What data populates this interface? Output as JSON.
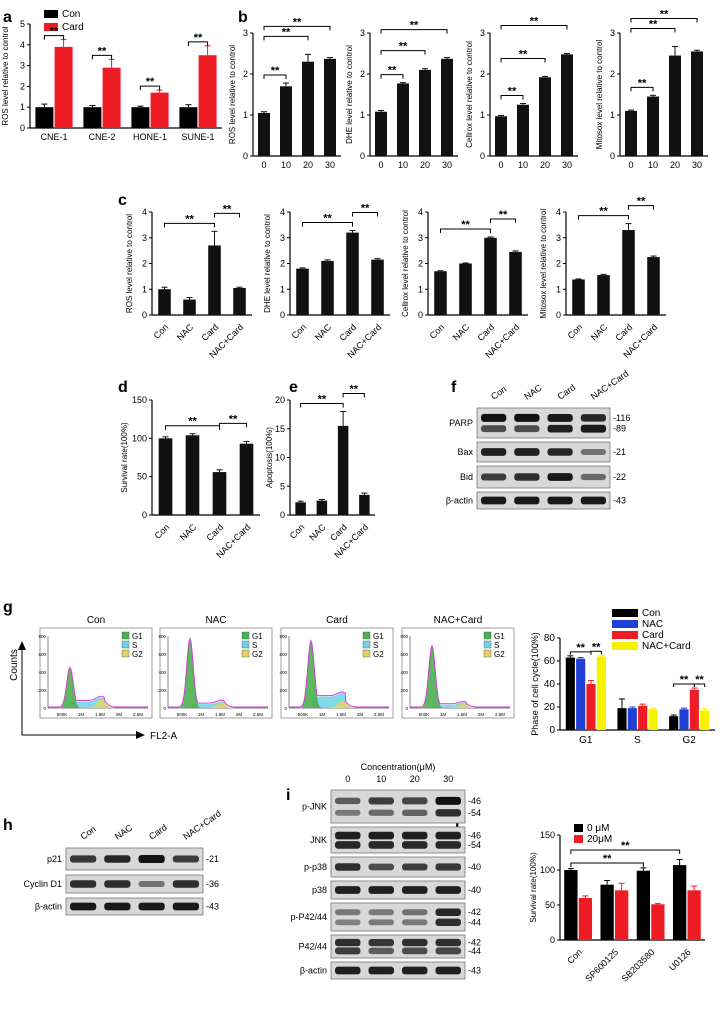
{
  "panel_letters": [
    "a",
    "b",
    "c",
    "d",
    "e",
    "f",
    "g",
    "h",
    "i",
    "j"
  ],
  "significance_mark": "**",
  "colors": {
    "con": "#000000",
    "card": "#ee1c24",
    "nac": "#1f3fd6",
    "nac_card": "#f6f200",
    "bar": "#111111",
    "g1_fill": "#4caf50",
    "s_fill": "#6fd3e8",
    "g2_fill": "#ddd36a"
  },
  "chart_data": [
    {
      "id": "a",
      "type": "bar",
      "ylabel": "ROS level relative to control",
      "categories": [
        "CNE-1",
        "CNE-2",
        "HONE-1",
        "SUNE-1"
      ],
      "series": [
        {
          "name": "Con",
          "color": "#000000",
          "values": [
            1,
            1,
            1,
            1
          ],
          "err": [
            0.15,
            0.08,
            0.05,
            0.12
          ]
        },
        {
          "name": "Card",
          "color": "#ee1c24",
          "values": [
            3.9,
            2.9,
            1.7,
            3.5
          ],
          "err": [
            0.35,
            0.4,
            0.12,
            0.45
          ]
        }
      ],
      "ylim": [
        0,
        5
      ],
      "yticks": [
        0,
        1,
        2,
        3,
        4,
        5
      ],
      "legend": "top-left",
      "sig": [
        [
          0,
          "**"
        ],
        [
          1,
          "**"
        ],
        [
          2,
          "**"
        ],
        [
          3,
          "**"
        ]
      ]
    },
    {
      "id": "b1",
      "type": "bar",
      "ylabel": "ROS level relative to control",
      "categories": [
        "0",
        "10",
        "20",
        "30"
      ],
      "values": [
        1.05,
        1.7,
        2.3,
        2.37
      ],
      "err": [
        0.03,
        0.08,
        0.18,
        0.03
      ],
      "ylim": [
        0,
        3
      ],
      "yticks": [
        0,
        1,
        2,
        3
      ],
      "brackets": [
        [
          0,
          1,
          "**"
        ],
        [
          0,
          2,
          "**"
        ],
        [
          0,
          3,
          "**"
        ]
      ]
    },
    {
      "id": "b2",
      "type": "bar",
      "ylabel": "DHE level relative to control",
      "categories": [
        "0",
        "10",
        "20",
        "30"
      ],
      "values": [
        1.08,
        1.77,
        2.1,
        2.37
      ],
      "err": [
        0.03,
        0.02,
        0.03,
        0.03
      ],
      "ylim": [
        0,
        3
      ],
      "yticks": [
        0,
        1,
        2,
        3
      ],
      "brackets": [
        [
          0,
          1,
          "**"
        ],
        [
          0,
          2,
          "**"
        ],
        [
          0,
          3,
          "**"
        ]
      ]
    },
    {
      "id": "b3",
      "type": "bar",
      "ylabel": "Cellrox level relative to control",
      "categories": [
        "0",
        "10",
        "20",
        "30"
      ],
      "values": [
        0.97,
        1.25,
        1.92,
        2.48
      ],
      "err": [
        0.02,
        0.03,
        0.02,
        0.02
      ],
      "ylim": [
        0,
        3
      ],
      "yticks": [
        0,
        1,
        2,
        3
      ],
      "brackets": [
        [
          0,
          1,
          "**"
        ],
        [
          0,
          2,
          "**"
        ],
        [
          0,
          3,
          "**"
        ]
      ]
    },
    {
      "id": "b4",
      "type": "bar",
      "ylabel": "Mitosox level relative to control",
      "categories": [
        "0",
        "10",
        "20",
        "30"
      ],
      "values": [
        1.1,
        1.45,
        2.45,
        2.55
      ],
      "err": [
        0.02,
        0.03,
        0.22,
        0.03
      ],
      "ylim": [
        0,
        3
      ],
      "yticks": [
        0,
        1,
        2,
        3
      ],
      "brackets": [
        [
          0,
          1,
          "**"
        ],
        [
          0,
          2,
          "**"
        ],
        [
          0,
          3,
          "**"
        ]
      ]
    },
    {
      "id": "c1",
      "type": "bar",
      "ylabel": "ROS level relative to control",
      "categories": [
        "Con",
        "NAC",
        "Card",
        "NAC+Card"
      ],
      "values": [
        1.0,
        0.6,
        2.7,
        1.05
      ],
      "err": [
        0.08,
        0.08,
        0.55,
        0.03
      ],
      "ylim": [
        0,
        4
      ],
      "yticks": [
        0,
        1,
        2,
        3,
        4
      ],
      "brackets": [
        [
          0,
          2,
          "**"
        ],
        [
          2,
          3,
          "**"
        ]
      ]
    },
    {
      "id": "c2",
      "type": "bar",
      "ylabel": "DHE level relative to control",
      "categories": [
        "Con",
        "NAC",
        "Card",
        "NAC+Card"
      ],
      "values": [
        1.8,
        2.1,
        3.2,
        2.15
      ],
      "err": [
        0.03,
        0.04,
        0.08,
        0.04
      ],
      "ylim": [
        0,
        4
      ],
      "yticks": [
        0,
        1,
        2,
        3,
        4
      ],
      "brackets": [
        [
          0,
          2,
          "**"
        ],
        [
          2,
          3,
          "**"
        ]
      ]
    },
    {
      "id": "c3",
      "type": "bar",
      "ylabel": "Cellrox level relative to control",
      "categories": [
        "Con",
        "NAC",
        "Card",
        "NAC+Card"
      ],
      "values": [
        1.7,
        2.0,
        3.0,
        2.45
      ],
      "err": [
        0.02,
        0.02,
        0.03,
        0.04
      ],
      "ylim": [
        0,
        4
      ],
      "yticks": [
        0,
        1,
        2,
        3,
        4
      ],
      "brackets": [
        [
          0,
          2,
          "**"
        ],
        [
          2,
          3,
          "**"
        ]
      ]
    },
    {
      "id": "c4",
      "type": "bar",
      "ylabel": "Mitosox level relative to control",
      "categories": [
        "Con",
        "NAC",
        "Card",
        "NAC+Card"
      ],
      "values": [
        1.38,
        1.55,
        3.3,
        2.25
      ],
      "err": [
        0.02,
        0.03,
        0.25,
        0.04
      ],
      "ylim": [
        0,
        4
      ],
      "yticks": [
        0,
        1,
        2,
        3,
        4
      ],
      "brackets": [
        [
          0,
          2,
          "**"
        ],
        [
          2,
          3,
          "**"
        ]
      ]
    },
    {
      "id": "d",
      "type": "bar",
      "ylabel": "Survival rate(100%)",
      "categories": [
        "Con",
        "NAC",
        "Card",
        "NAC+Card"
      ],
      "values": [
        100,
        104,
        56,
        93
      ],
      "err": [
        2,
        2,
        3,
        3
      ],
      "ylim": [
        0,
        150
      ],
      "yticks": [
        0,
        50,
        100,
        150
      ],
      "brackets": [
        [
          0,
          2,
          "**"
        ],
        [
          2,
          3,
          "**"
        ]
      ]
    },
    {
      "id": "e",
      "type": "bar",
      "ylabel": "Apoptosis(100%)",
      "categories": [
        "Con",
        "NAC",
        "Card",
        "NAC+Card"
      ],
      "values": [
        2.2,
        2.5,
        15.5,
        3.5
      ],
      "err": [
        0.2,
        0.2,
        2.5,
        0.3
      ],
      "ylim": [
        0,
        20
      ],
      "yticks": [
        0,
        5,
        10,
        15,
        20
      ],
      "brackets": [
        [
          0,
          2,
          "**"
        ],
        [
          2,
          3,
          "**"
        ]
      ]
    },
    {
      "id": "g_bar",
      "type": "bar",
      "ylabel": "Phase of cell cycle(100%)",
      "categories": [
        "G1",
        "S",
        "G2"
      ],
      "series": [
        {
          "name": "Con",
          "color": "#000000",
          "values": [
            63,
            19,
            12
          ],
          "err": [
            1.5,
            8,
            1
          ]
        },
        {
          "name": "NAC",
          "color": "#1f3fd6",
          "values": [
            62,
            19,
            18
          ],
          "err": [
            1,
            1,
            1
          ]
        },
        {
          "name": "Card",
          "color": "#ee1c24",
          "values": [
            40,
            21,
            35
          ],
          "err": [
            3,
            1.5,
            1.5
          ]
        },
        {
          "name": "NAC+Card",
          "color": "#f6f200",
          "values": [
            64,
            18,
            17
          ],
          "err": [
            1,
            1,
            1.5
          ]
        }
      ],
      "ylim": [
        0,
        80
      ],
      "yticks": [
        0,
        20,
        40,
        60,
        80
      ],
      "legend": "top-right",
      "brackets": [
        [
          0,
          0,
          2,
          "**"
        ],
        [
          0,
          2,
          3,
          "**"
        ],
        [
          2,
          0,
          2,
          "**"
        ],
        [
          2,
          2,
          3,
          "**"
        ]
      ]
    },
    {
      "id": "j",
      "type": "bar",
      "ylabel": "Survival rate(100%)",
      "categories": [
        "Con",
        "SP600125",
        "SB203580",
        "U0126"
      ],
      "series": [
        {
          "name": "0 μM",
          "color": "#000000",
          "values": [
            100,
            79,
            99,
            107
          ],
          "err": [
            2,
            6,
            4,
            8
          ]
        },
        {
          "name": "20μM",
          "color": "#ee1c24",
          "values": [
            60,
            71,
            51,
            71
          ],
          "err": [
            3,
            10,
            1,
            6
          ]
        }
      ],
      "ylim": [
        0,
        150
      ],
      "yticks": [
        0,
        50,
        100,
        150
      ],
      "legend": "top-left",
      "brackets": [
        [
          1,
          0,
          2,
          "**"
        ],
        [
          1,
          0,
          3,
          "**"
        ]
      ]
    }
  ],
  "flow": {
    "titles": [
      "Con",
      "NAC",
      "Card",
      "NAC+Card"
    ],
    "legend": [
      "G1",
      "S",
      "G2"
    ],
    "xticks": [
      "500K",
      "1M",
      "1.5M",
      "2M",
      "2.5M"
    ],
    "yticks": [
      "0",
      "200",
      "400",
      "600",
      "800"
    ],
    "xlabel": "FL2-A",
    "ylabel": "Counts"
  },
  "blots": {
    "f": {
      "columns": [
        "Con",
        "NAC",
        "Card",
        "NAC+Card"
      ],
      "rows": [
        {
          "label": "PARP",
          "mw": [
            "116",
            "89"
          ],
          "int": [
            [
              1,
              1,
              0.95,
              0.85
            ],
            [
              0.6,
              0.6,
              0.9,
              0.95
            ]
          ]
        },
        {
          "label": "Bax",
          "mw": [
            "21"
          ],
          "int": [
            [
              0.9,
              0.9,
              0.85,
              0.35
            ]
          ]
        },
        {
          "label": "Bid",
          "mw": [
            "22"
          ],
          "int": [
            [
              0.7,
              0.8,
              0.95,
              0.4
            ]
          ]
        },
        {
          "label": "β-actin",
          "mw": [
            "43"
          ],
          "int": [
            [
              0.95,
              0.95,
              0.95,
              0.95
            ]
          ]
        }
      ]
    },
    "h": {
      "columns": [
        "Con",
        "NAC",
        "Card",
        "NAC+Card"
      ],
      "rows": [
        {
          "label": "p21",
          "mw": [
            "21"
          ],
          "int": [
            [
              0.75,
              0.85,
              1,
              0.7
            ]
          ]
        },
        {
          "label": "Cyclin D1",
          "mw": [
            "36"
          ],
          "int": [
            [
              0.8,
              0.8,
              0.35,
              0.8
            ]
          ]
        },
        {
          "label": "β-actin",
          "mw": [
            "43"
          ],
          "int": [
            [
              0.95,
              0.95,
              0.95,
              0.95
            ]
          ]
        }
      ]
    },
    "i": {
      "header": "Concentration(μM)",
      "columns": [
        "0",
        "10",
        "20",
        "30"
      ],
      "rows": [
        {
          "label": "p-JNK",
          "mw": [
            "46",
            "54"
          ],
          "int": [
            [
              0.5,
              0.7,
              0.65,
              1
            ],
            [
              0.3,
              0.4,
              0.45,
              0.8
            ]
          ]
        },
        {
          "label": "JNK",
          "mw": [
            "46",
            "54"
          ],
          "int": [
            [
              0.9,
              0.9,
              0.9,
              0.9
            ],
            [
              0.85,
              0.85,
              0.85,
              0.85
            ]
          ]
        },
        {
          "label": "p-p38",
          "mw": [
            "40"
          ],
          "int": [
            [
              0.8,
              0.6,
              0.7,
              0.75
            ]
          ]
        },
        {
          "label": "p38",
          "mw": [
            "40"
          ],
          "int": [
            [
              0.9,
              0.9,
              0.9,
              0.9
            ]
          ]
        },
        {
          "label": "p-P42/44",
          "mw": [
            "42",
            "44"
          ],
          "int": [
            [
              0.3,
              0.3,
              0.35,
              0.85
            ],
            [
              0.25,
              0.3,
              0.3,
              0.8
            ]
          ]
        },
        {
          "label": "P42/44",
          "mw": [
            "42",
            "44"
          ],
          "int": [
            [
              0.8,
              0.75,
              0.8,
              0.8
            ],
            [
              0.7,
              0.5,
              0.6,
              0.65
            ]
          ]
        },
        {
          "label": "β-actin",
          "mw": [
            "43"
          ],
          "int": [
            [
              0.9,
              0.9,
              0.9,
              0.9
            ]
          ]
        }
      ]
    }
  }
}
